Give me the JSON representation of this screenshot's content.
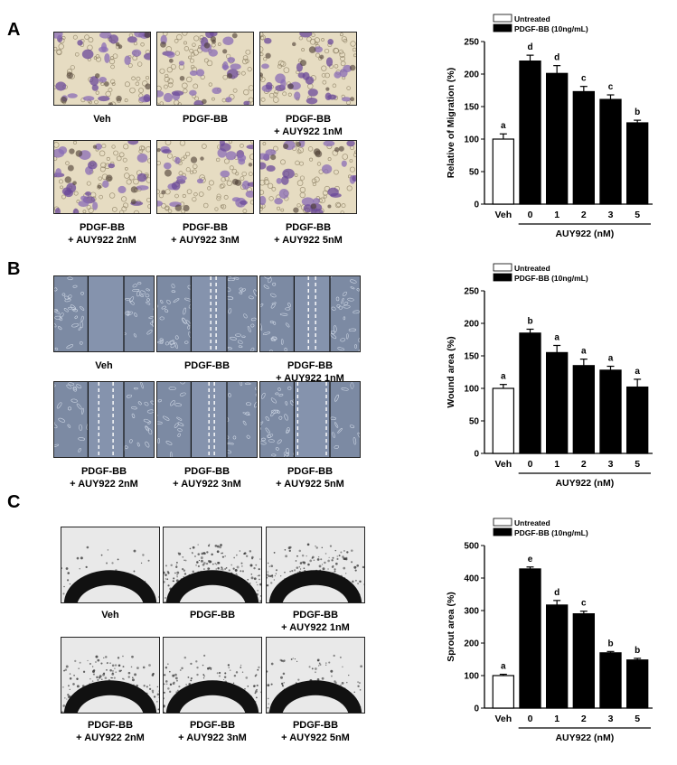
{
  "panels": [
    {
      "letter": "A",
      "image_type": "migration",
      "images": [
        {
          "caption": [
            "Veh",
            ""
          ]
        },
        {
          "caption": [
            "PDGF-BB",
            ""
          ]
        },
        {
          "caption": [
            "PDGF-BB",
            "+ AUY922  1nM"
          ]
        },
        {
          "caption": [
            "PDGF-BB",
            "+ AUY922  2nM"
          ]
        },
        {
          "caption": [
            "PDGF-BB",
            "+ AUY922  3nM"
          ]
        },
        {
          "caption": [
            "PDGF-BB",
            "+ AUY922  5nM"
          ]
        }
      ]
    },
    {
      "letter": "B",
      "image_type": "wound",
      "images": [
        {
          "caption": [
            "Veh",
            ""
          ]
        },
        {
          "caption": [
            "PDGF-BB",
            ""
          ]
        },
        {
          "caption": [
            "PDGF-BB",
            "+ AUY922  1nM"
          ]
        },
        {
          "caption": [
            "PDGF-BB",
            "+ AUY922  2nM"
          ]
        },
        {
          "caption": [
            "PDGF-BB",
            "+ AUY922  3nM"
          ]
        },
        {
          "caption": [
            "PDGF-BB",
            "+ AUY922  5nM"
          ]
        }
      ]
    },
    {
      "letter": "C",
      "image_type": "sprout",
      "images": [
        {
          "caption": [
            "Veh",
            ""
          ]
        },
        {
          "caption": [
            "PDGF-BB",
            ""
          ]
        },
        {
          "caption": [
            "PDGF-BB",
            "+ AUY922  1nM"
          ]
        },
        {
          "caption": [
            "PDGF-BB",
            "+ AUY922  2nM"
          ]
        },
        {
          "caption": [
            "PDGF-BB",
            "+ AUY922  3nM"
          ]
        },
        {
          "caption": [
            "PDGF-BB",
            "+ AUY922  5nM"
          ]
        }
      ]
    }
  ],
  "chart_data": [
    {
      "type": "bar",
      "panel": "A",
      "categories": [
        "Veh",
        "0",
        "1",
        "2",
        "3",
        "5"
      ],
      "group_label": "AUY922  (nM)",
      "ylabel": "Relative of Migration (%)",
      "ylim": [
        0,
        250
      ],
      "yticks": [
        0,
        50,
        100,
        150,
        200,
        250
      ],
      "series": [
        {
          "name": "Untreated",
          "fill": "#ffffff",
          "indices": [
            0
          ]
        },
        {
          "name": "PDGF-BB (10ng/mL)",
          "fill": "#000000",
          "indices": [
            1,
            2,
            3,
            4,
            5
          ]
        }
      ],
      "values": [
        100,
        220,
        201,
        173,
        161,
        125
      ],
      "errors": [
        8,
        9,
        12,
        8,
        7,
        4
      ],
      "letters": [
        "a",
        "d",
        "d",
        "c",
        "c",
        "b"
      ]
    },
    {
      "type": "bar",
      "panel": "B",
      "categories": [
        "Veh",
        "0",
        "1",
        "2",
        "3",
        "5"
      ],
      "group_label": "AUY922  (nM)",
      "ylabel": "Wound area (%)",
      "ylim": [
        0,
        250
      ],
      "yticks": [
        0,
        50,
        100,
        150,
        200,
        250
      ],
      "series": [
        {
          "name": "Untreated",
          "fill": "#ffffff",
          "indices": [
            0
          ]
        },
        {
          "name": "PDGF-BB (10ng/mL)",
          "fill": "#000000",
          "indices": [
            1,
            2,
            3,
            4,
            5
          ]
        }
      ],
      "values": [
        100,
        185,
        155,
        135,
        128,
        102
      ],
      "errors": [
        6,
        6,
        11,
        10,
        6,
        12
      ],
      "letters": [
        "a",
        "b",
        "a",
        "a",
        "a",
        "a"
      ]
    },
    {
      "type": "bar",
      "panel": "C",
      "categories": [
        "Veh",
        "0",
        "1",
        "2",
        "3",
        "5"
      ],
      "group_label": "AUY922  (nM)",
      "ylabel": "Sprout area (%)",
      "ylim": [
        0,
        500
      ],
      "yticks": [
        0,
        100,
        200,
        300,
        400,
        500
      ],
      "series": [
        {
          "name": "Untreated",
          "fill": "#ffffff",
          "indices": [
            0
          ]
        },
        {
          "name": "PDGF-BB (10ng/mL)",
          "fill": "#000000",
          "indices": [
            1,
            2,
            3,
            4,
            5
          ]
        }
      ],
      "values": [
        100,
        428,
        317,
        290,
        170,
        148
      ],
      "errors": [
        4,
        6,
        14,
        8,
        4,
        5
      ],
      "letters": [
        "a",
        "e",
        "d",
        "c",
        "b",
        "b"
      ]
    }
  ]
}
